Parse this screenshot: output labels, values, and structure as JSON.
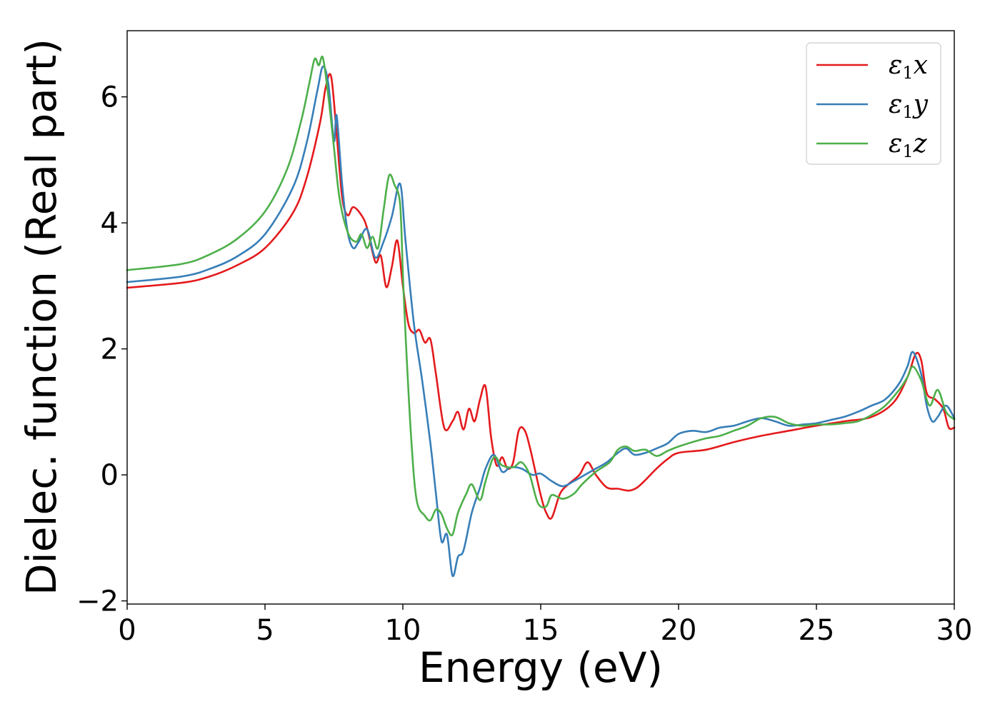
{
  "chart_data": {
    "type": "line",
    "title": "",
    "xlabel": "Energy (eV)",
    "ylabel": "Dielec. function (Real part)",
    "xlim": [
      0,
      30
    ],
    "ylim": [
      -2.05,
      7.05
    ],
    "xticks": [
      0,
      5,
      10,
      15,
      20,
      25,
      30
    ],
    "xtick_labels": [
      "0",
      "5",
      "10",
      "15",
      "20",
      "25",
      "30"
    ],
    "yticks": [
      -2,
      0,
      2,
      4,
      6
    ],
    "ytick_labels": [
      "−2",
      "0",
      "2",
      "4",
      "6"
    ],
    "grid": false,
    "legend_position": "top-right",
    "series": [
      {
        "name": "ε₁x",
        "legend": {
          "base": "ε",
          "sub": "1",
          "suffix": "x"
        },
        "color": "#e41a1c",
        "points": [
          [
            0,
            2.97
          ],
          [
            2,
            3.05
          ],
          [
            3,
            3.15
          ],
          [
            4,
            3.33
          ],
          [
            5,
            3.6
          ],
          [
            6,
            4.15
          ],
          [
            6.5,
            4.7
          ],
          [
            7.0,
            5.6
          ],
          [
            7.2,
            6.15
          ],
          [
            7.4,
            6.32
          ],
          [
            7.6,
            5.4
          ],
          [
            7.8,
            4.4
          ],
          [
            8.0,
            4.12
          ],
          [
            8.2,
            4.25
          ],
          [
            8.5,
            4.12
          ],
          [
            8.7,
            3.92
          ],
          [
            9.0,
            3.38
          ],
          [
            9.2,
            3.48
          ],
          [
            9.4,
            2.98
          ],
          [
            9.6,
            3.3
          ],
          [
            9.8,
            3.72
          ],
          [
            10.0,
            3.0
          ],
          [
            10.2,
            2.4
          ],
          [
            10.4,
            2.25
          ],
          [
            10.6,
            2.3
          ],
          [
            10.8,
            2.1
          ],
          [
            11.0,
            2.15
          ],
          [
            11.2,
            1.6
          ],
          [
            11.5,
            0.75
          ],
          [
            11.8,
            0.85
          ],
          [
            12.0,
            1.0
          ],
          [
            12.2,
            0.72
          ],
          [
            12.4,
            1.05
          ],
          [
            12.6,
            0.85
          ],
          [
            12.8,
            1.2
          ],
          [
            13.0,
            1.4
          ],
          [
            13.2,
            0.6
          ],
          [
            13.4,
            0.15
          ],
          [
            13.6,
            0.28
          ],
          [
            13.8,
            0.1
          ],
          [
            14.0,
            0.2
          ],
          [
            14.2,
            0.7
          ],
          [
            14.4,
            0.72
          ],
          [
            14.6,
            0.45
          ],
          [
            15.0,
            -0.32
          ],
          [
            15.2,
            -0.6
          ],
          [
            15.4,
            -0.68
          ],
          [
            15.7,
            -0.3
          ],
          [
            16.0,
            -0.15
          ],
          [
            16.4,
            0.0
          ],
          [
            16.7,
            0.2
          ],
          [
            17.0,
            0.0
          ],
          [
            17.4,
            -0.2
          ],
          [
            17.8,
            -0.22
          ],
          [
            18.2,
            -0.25
          ],
          [
            18.5,
            -0.2
          ],
          [
            18.8,
            -0.08
          ],
          [
            19.2,
            0.1
          ],
          [
            19.6,
            0.25
          ],
          [
            20.0,
            0.35
          ],
          [
            21.0,
            0.4
          ],
          [
            22.0,
            0.52
          ],
          [
            23.0,
            0.62
          ],
          [
            24.0,
            0.7
          ],
          [
            25.0,
            0.78
          ],
          [
            26.0,
            0.85
          ],
          [
            27.0,
            0.92
          ],
          [
            27.8,
            1.15
          ],
          [
            28.3,
            1.55
          ],
          [
            28.6,
            1.92
          ],
          [
            28.8,
            1.82
          ],
          [
            29.0,
            1.3
          ],
          [
            29.3,
            1.2
          ],
          [
            29.6,
            1.05
          ],
          [
            29.8,
            0.75
          ],
          [
            30.0,
            0.75
          ]
        ]
      },
      {
        "name": "ε₁y",
        "legend": {
          "base": "ε",
          "sub": "1",
          "suffix": "y"
        },
        "color": "#377eb8",
        "points": [
          [
            0,
            3.06
          ],
          [
            2,
            3.15
          ],
          [
            3,
            3.27
          ],
          [
            4,
            3.47
          ],
          [
            5,
            3.82
          ],
          [
            6,
            4.55
          ],
          [
            6.5,
            5.25
          ],
          [
            6.9,
            6.1
          ],
          [
            7.1,
            6.48
          ],
          [
            7.3,
            6.2
          ],
          [
            7.5,
            5.3
          ],
          [
            7.6,
            5.7
          ],
          [
            7.8,
            4.6
          ],
          [
            8.0,
            3.85
          ],
          [
            8.2,
            3.6
          ],
          [
            8.4,
            3.7
          ],
          [
            8.7,
            3.9
          ],
          [
            9.0,
            3.45
          ],
          [
            9.3,
            3.7
          ],
          [
            9.6,
            4.1
          ],
          [
            9.9,
            4.62
          ],
          [
            10.1,
            3.7
          ],
          [
            10.4,
            2.4
          ],
          [
            10.7,
            1.5
          ],
          [
            11.0,
            0.5
          ],
          [
            11.2,
            -0.3
          ],
          [
            11.4,
            -1.05
          ],
          [
            11.6,
            -0.95
          ],
          [
            11.8,
            -1.6
          ],
          [
            12.0,
            -1.3
          ],
          [
            12.2,
            -1.2
          ],
          [
            12.5,
            -0.6
          ],
          [
            12.8,
            -0.2
          ],
          [
            13.0,
            0.1
          ],
          [
            13.3,
            0.32
          ],
          [
            13.6,
            0.05
          ],
          [
            13.9,
            0.12
          ],
          [
            14.3,
            0.1
          ],
          [
            14.7,
            0.0
          ],
          [
            15.0,
            0.02
          ],
          [
            15.4,
            -0.1
          ],
          [
            15.8,
            -0.18
          ],
          [
            16.2,
            -0.1
          ],
          [
            16.6,
            0.0
          ],
          [
            17.0,
            0.1
          ],
          [
            17.4,
            0.2
          ],
          [
            17.8,
            0.35
          ],
          [
            18.1,
            0.42
          ],
          [
            18.4,
            0.32
          ],
          [
            18.8,
            0.35
          ],
          [
            19.2,
            0.42
          ],
          [
            19.6,
            0.5
          ],
          [
            20.0,
            0.65
          ],
          [
            20.5,
            0.7
          ],
          [
            21.0,
            0.68
          ],
          [
            21.5,
            0.75
          ],
          [
            22.0,
            0.78
          ],
          [
            22.5,
            0.85
          ],
          [
            23.0,
            0.9
          ],
          [
            23.5,
            0.85
          ],
          [
            24.0,
            0.78
          ],
          [
            24.5,
            0.8
          ],
          [
            25.0,
            0.82
          ],
          [
            25.5,
            0.87
          ],
          [
            26.0,
            0.92
          ],
          [
            26.5,
            1.0
          ],
          [
            27.0,
            1.1
          ],
          [
            27.5,
            1.2
          ],
          [
            28.0,
            1.45
          ],
          [
            28.3,
            1.72
          ],
          [
            28.5,
            1.95
          ],
          [
            28.8,
            1.6
          ],
          [
            29.0,
            1.1
          ],
          [
            29.2,
            0.85
          ],
          [
            29.4,
            0.92
          ],
          [
            29.7,
            1.1
          ],
          [
            30.0,
            0.9
          ]
        ]
      },
      {
        "name": "ε₁z",
        "legend": {
          "base": "ε",
          "sub": "1",
          "suffix": "z"
        },
        "color": "#4daf4a",
        "points": [
          [
            0,
            3.25
          ],
          [
            2,
            3.35
          ],
          [
            3,
            3.5
          ],
          [
            4,
            3.75
          ],
          [
            5,
            4.18
          ],
          [
            5.8,
            4.85
          ],
          [
            6.3,
            5.6
          ],
          [
            6.6,
            6.2
          ],
          [
            6.8,
            6.6
          ],
          [
            6.95,
            6.5
          ],
          [
            7.1,
            6.62
          ],
          [
            7.3,
            6.0
          ],
          [
            7.5,
            5.2
          ],
          [
            7.7,
            4.4
          ],
          [
            8.0,
            3.85
          ],
          [
            8.3,
            3.7
          ],
          [
            8.5,
            3.82
          ],
          [
            8.7,
            3.6
          ],
          [
            8.9,
            3.78
          ],
          [
            9.1,
            3.6
          ],
          [
            9.3,
            4.2
          ],
          [
            9.5,
            4.75
          ],
          [
            9.7,
            4.6
          ],
          [
            9.9,
            4.3
          ],
          [
            10.0,
            3.2
          ],
          [
            10.1,
            2.2
          ],
          [
            10.3,
            0.6
          ],
          [
            10.5,
            -0.4
          ],
          [
            10.8,
            -0.65
          ],
          [
            11.0,
            -0.72
          ],
          [
            11.2,
            -0.55
          ],
          [
            11.4,
            -0.62
          ],
          [
            11.6,
            -0.85
          ],
          [
            11.8,
            -0.95
          ],
          [
            12.0,
            -0.6
          ],
          [
            12.3,
            -0.3
          ],
          [
            12.5,
            -0.15
          ],
          [
            12.8,
            -0.4
          ],
          [
            13.0,
            -0.1
          ],
          [
            13.3,
            0.28
          ],
          [
            13.6,
            0.15
          ],
          [
            14.0,
            0.12
          ],
          [
            14.3,
            0.2
          ],
          [
            14.6,
            0.0
          ],
          [
            14.9,
            -0.45
          ],
          [
            15.2,
            -0.5
          ],
          [
            15.4,
            -0.32
          ],
          [
            15.8,
            -0.38
          ],
          [
            16.2,
            -0.3
          ],
          [
            16.5,
            -0.15
          ],
          [
            17.0,
            0.05
          ],
          [
            17.5,
            0.2
          ],
          [
            17.8,
            0.4
          ],
          [
            18.1,
            0.45
          ],
          [
            18.4,
            0.38
          ],
          [
            18.8,
            0.4
          ],
          [
            19.2,
            0.3
          ],
          [
            19.6,
            0.38
          ],
          [
            20.0,
            0.45
          ],
          [
            20.5,
            0.52
          ],
          [
            21.0,
            0.58
          ],
          [
            21.5,
            0.62
          ],
          [
            22.0,
            0.7
          ],
          [
            22.5,
            0.78
          ],
          [
            23.0,
            0.9
          ],
          [
            23.5,
            0.92
          ],
          [
            24.0,
            0.82
          ],
          [
            24.5,
            0.78
          ],
          [
            25.0,
            0.8
          ],
          [
            25.5,
            0.8
          ],
          [
            26.0,
            0.82
          ],
          [
            26.5,
            0.85
          ],
          [
            27.0,
            0.95
          ],
          [
            27.5,
            1.1
          ],
          [
            28.0,
            1.35
          ],
          [
            28.3,
            1.55
          ],
          [
            28.5,
            1.72
          ],
          [
            28.8,
            1.5
          ],
          [
            29.1,
            1.1
          ],
          [
            29.4,
            1.35
          ],
          [
            29.7,
            1.0
          ],
          [
            30.0,
            0.88
          ]
        ]
      }
    ]
  }
}
